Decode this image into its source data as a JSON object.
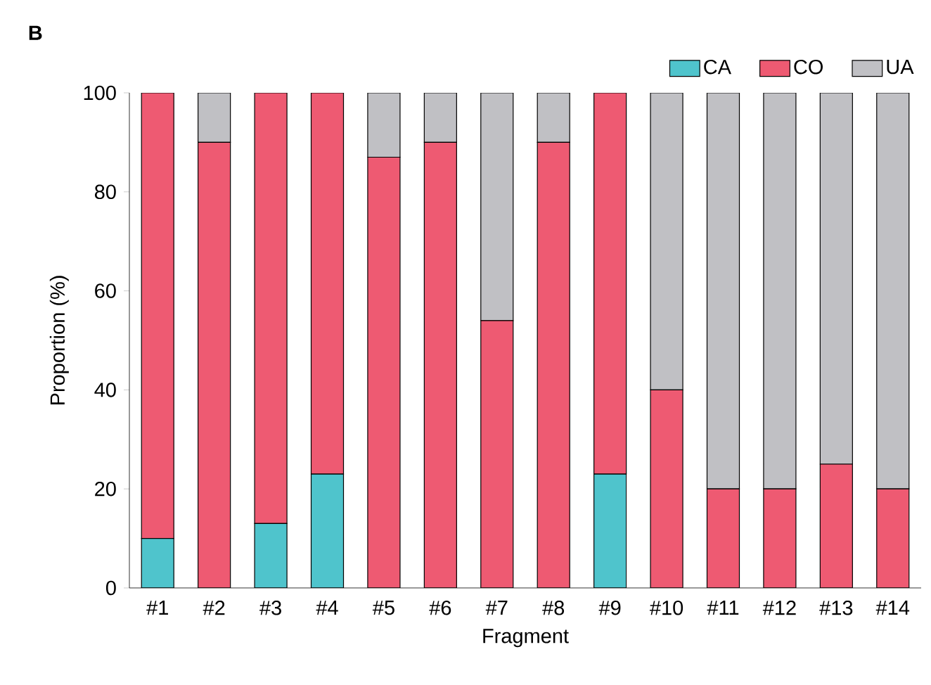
{
  "chart_data": {
    "type": "bar",
    "title": "B",
    "xlabel": "Fragment",
    "ylabel": "Proportion (%)",
    "categories": [
      "#1",
      "#2",
      "#3",
      "#4",
      "#5",
      "#6",
      "#7",
      "#8",
      "#9",
      "#10",
      "#11",
      "#12",
      "#13",
      "#14"
    ],
    "stacked": true,
    "legend": "top right",
    "ylim": [
      0,
      100
    ],
    "yticks": [
      0,
      20,
      40,
      60,
      80,
      100
    ],
    "series": [
      {
        "name": "CA",
        "color": "#4fc4cc",
        "values": [
          10,
          0,
          13,
          23,
          0,
          0,
          0,
          0,
          23,
          0,
          0,
          0,
          0,
          0
        ]
      },
      {
        "name": "CO",
        "color": "#ee5a72",
        "values": [
          90,
          90,
          87,
          77,
          87,
          90,
          54,
          90,
          77,
          40,
          20,
          20,
          25,
          20
        ]
      },
      {
        "name": "UA",
        "color": "#c0c0c4",
        "values": [
          0,
          10,
          0,
          0,
          13,
          10,
          46,
          10,
          0,
          60,
          80,
          80,
          75,
          80
        ]
      }
    ]
  }
}
